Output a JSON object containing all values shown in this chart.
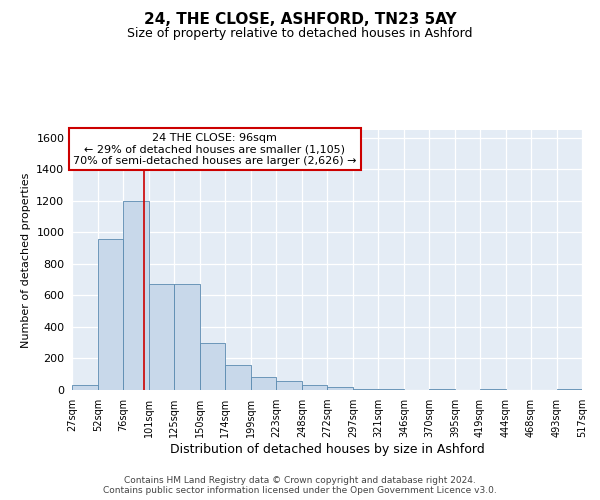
{
  "title": "24, THE CLOSE, ASHFORD, TN23 5AY",
  "subtitle": "Size of property relative to detached houses in Ashford",
  "xlabel": "Distribution of detached houses by size in Ashford",
  "ylabel": "Number of detached properties",
  "footer_line1": "Contains HM Land Registry data © Crown copyright and database right 2024.",
  "footer_line2": "Contains public sector information licensed under the Open Government Licence v3.0.",
  "annotation_line1": "24 THE CLOSE: 96sqm",
  "annotation_line2": "← 29% of detached houses are smaller (1,105)",
  "annotation_line3": "70% of semi-detached houses are larger (2,626) →",
  "property_size": 96,
  "bar_color": "#c8d8ea",
  "bar_edge_color": "#5a8ab0",
  "marker_line_color": "#cc0000",
  "bg_color": "#e4ecf5",
  "annotation_box_facecolor": "#ffffff",
  "annotation_box_edgecolor": "#cc0000",
  "ylim": [
    0,
    1650
  ],
  "yticks": [
    0,
    200,
    400,
    600,
    800,
    1000,
    1200,
    1400,
    1600
  ],
  "bin_edges": [
    27,
    52,
    76,
    101,
    125,
    150,
    174,
    199,
    223,
    248,
    272,
    297,
    321,
    346,
    370,
    395,
    419,
    444,
    468,
    493,
    517
  ],
  "bin_labels": [
    "27sqm",
    "52sqm",
    "76sqm",
    "101sqm",
    "125sqm",
    "150sqm",
    "174sqm",
    "199sqm",
    "223sqm",
    "248sqm",
    "272sqm",
    "297sqm",
    "321sqm",
    "346sqm",
    "370sqm",
    "395sqm",
    "419sqm",
    "444sqm",
    "468sqm",
    "493sqm",
    "517sqm"
  ],
  "counts": [
    30,
    960,
    1200,
    670,
    670,
    300,
    160,
    80,
    55,
    30,
    20,
    5,
    8,
    3,
    8,
    0,
    8,
    0,
    0,
    8
  ],
  "title_fontsize": 11,
  "subtitle_fontsize": 9,
  "xlabel_fontsize": 9,
  "ylabel_fontsize": 8,
  "tick_fontsize": 8,
  "xtick_fontsize": 7,
  "annotation_fontsize": 8,
  "footer_fontsize": 6.5
}
